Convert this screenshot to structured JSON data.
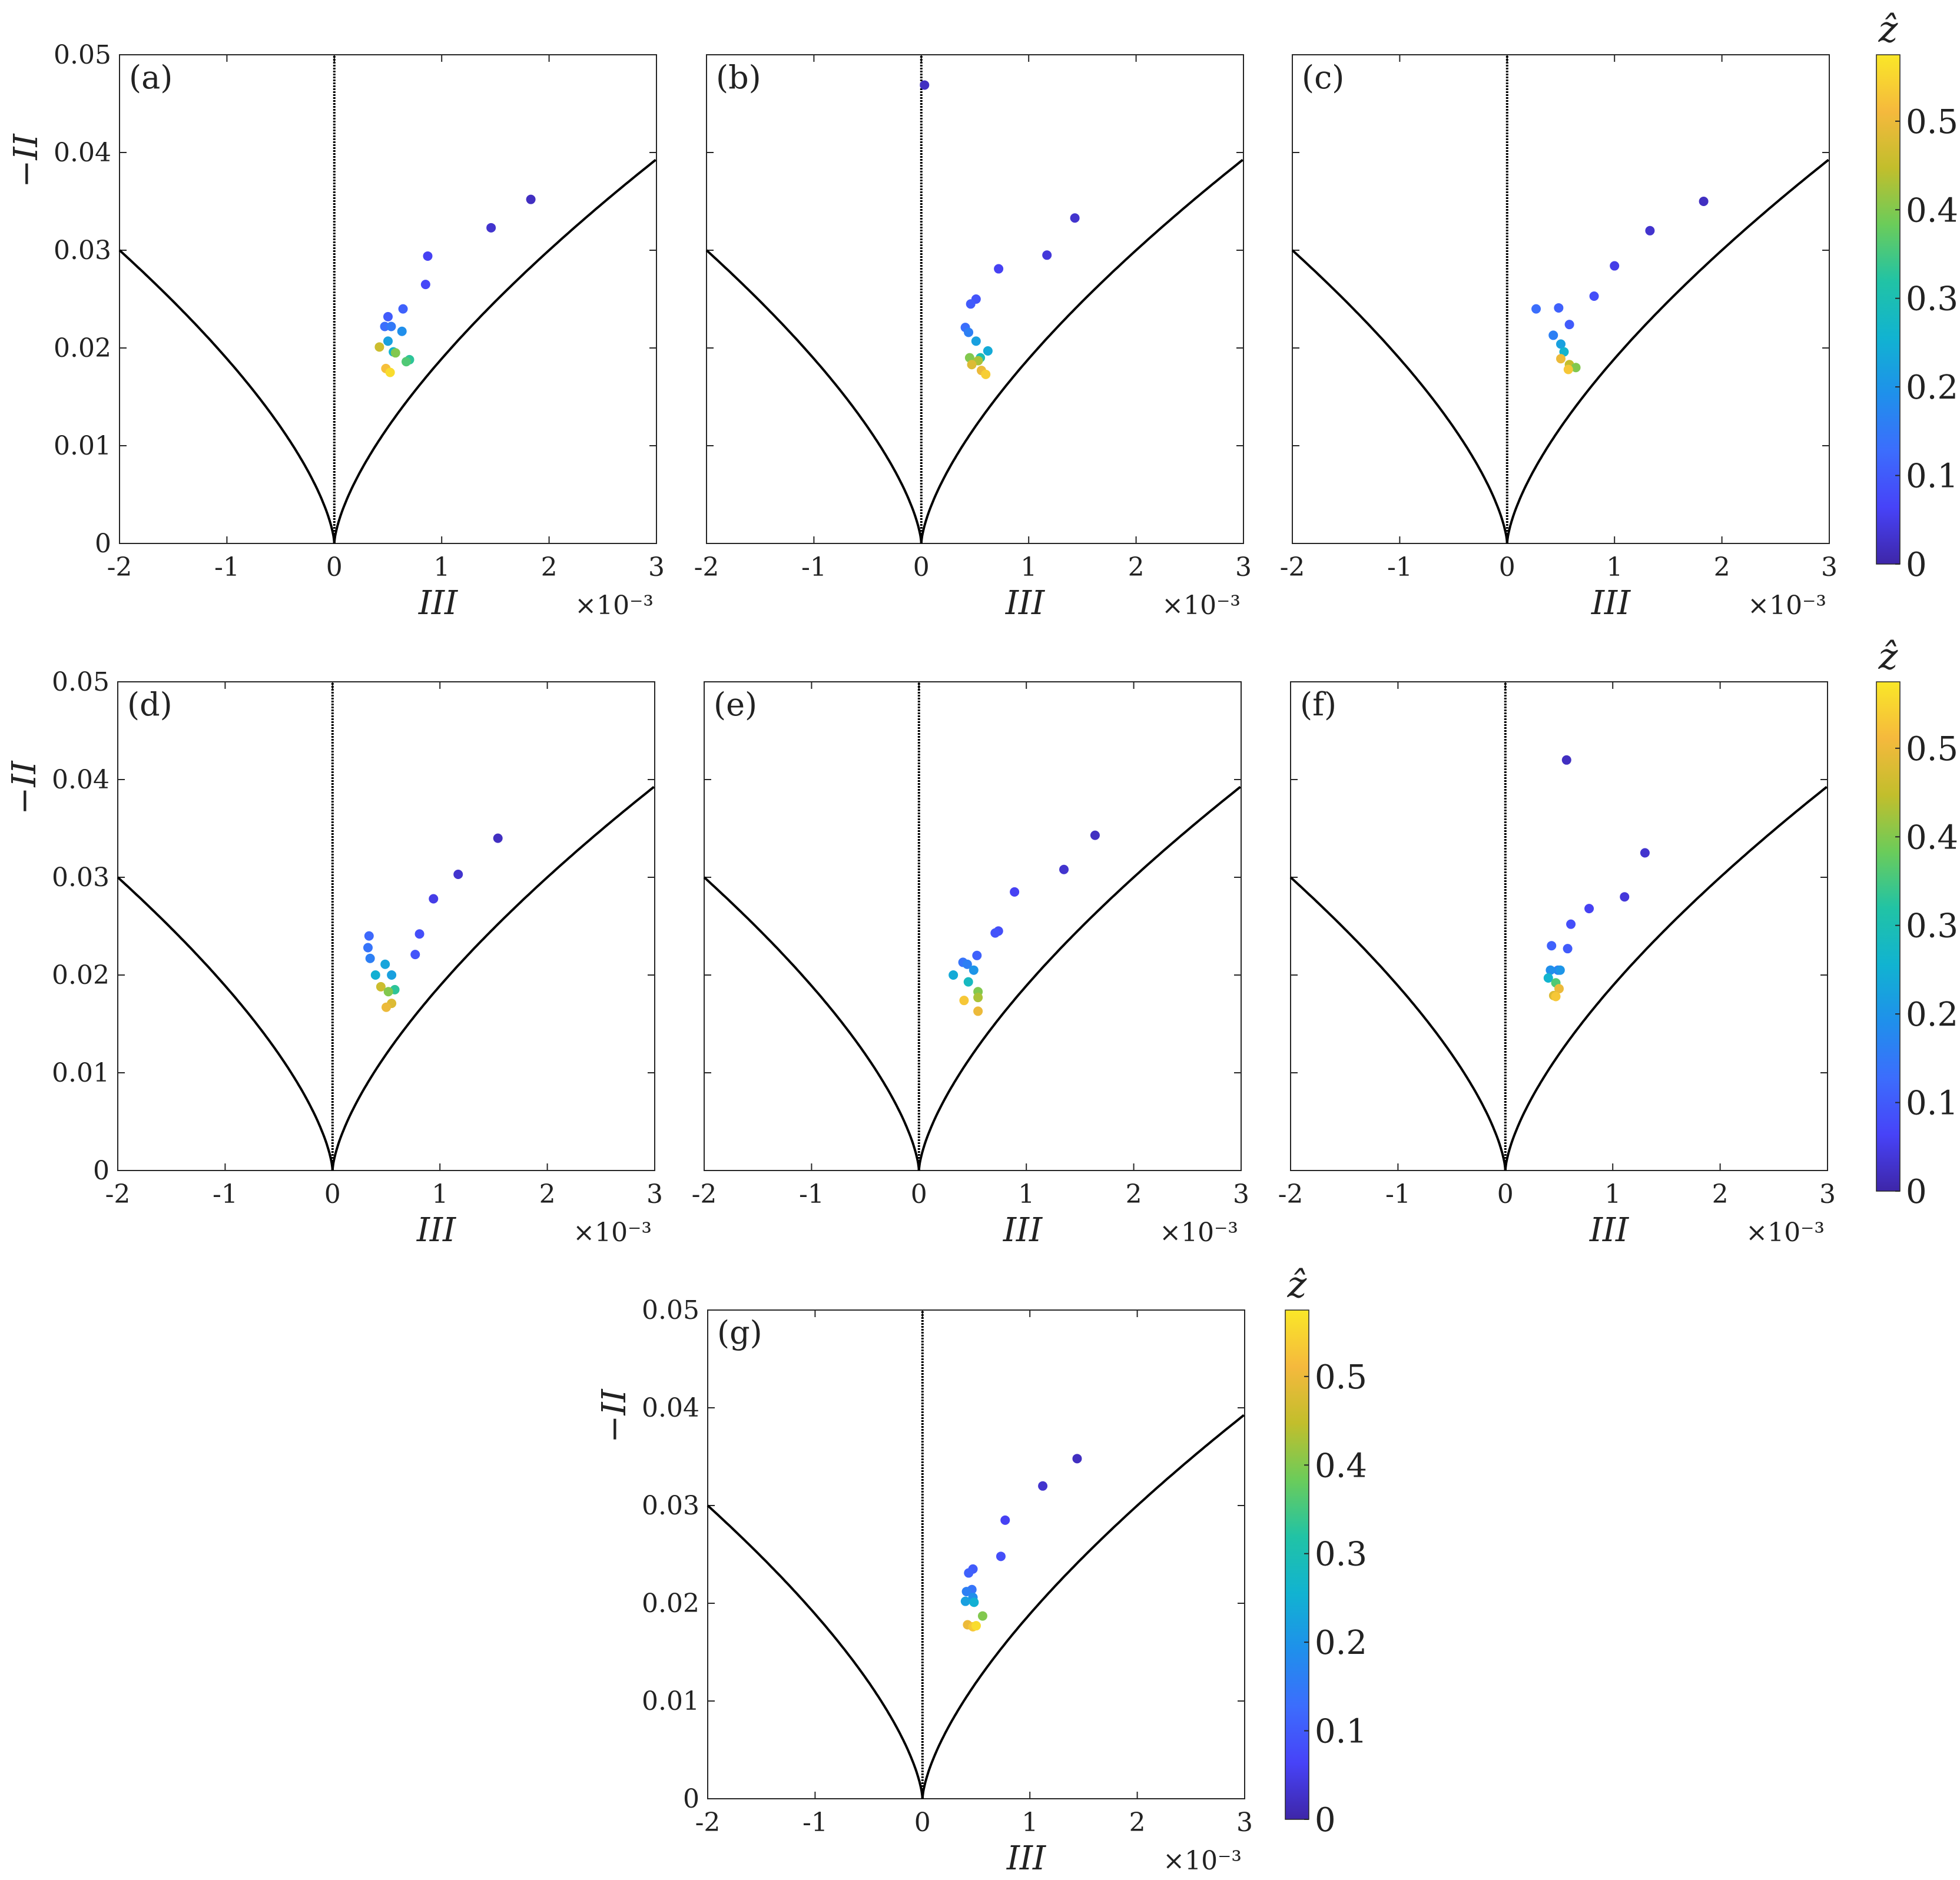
{
  "figure": {
    "colorbar": {
      "label": "ẑ",
      "ticks": [
        "0",
        "0.1",
        "0.2",
        "0.3",
        "0.4",
        "0.5"
      ],
      "range": [
        0,
        0.575
      ]
    },
    "colormap": [
      "#3e26a8",
      "#4743f8",
      "#3c6dfd",
      "#1f90eb",
      "#11b3d1",
      "#21c3a5",
      "#6bcc5a",
      "#c2be2c",
      "#f5b93d",
      "#fae728"
    ]
  },
  "chart_data": [
    {
      "panel": "(a)",
      "type": "scatter",
      "xlabel": "III",
      "ylabel": "−II",
      "x_multiplier": "×10⁻³",
      "xlim": [
        -2,
        3
      ],
      "ylim": [
        0,
        0.05
      ],
      "xticks": [
        "-2",
        "-1",
        "0",
        "1",
        "2",
        "3"
      ],
      "yticks": [
        "0",
        "0.01",
        "0.02",
        "0.03",
        "0.04",
        "0.05"
      ],
      "boundary_curves": [
        "III = 2(−II/3)^(3/2)",
        "III = −2(−II/3)^(3/2)",
        "III = 0"
      ],
      "grid": false,
      "points": {
        "x": [
          1.83,
          1.46,
          0.87,
          0.85,
          0.64,
          0.5,
          0.47,
          0.53,
          0.63,
          0.5,
          0.55,
          0.7,
          0.67,
          0.57,
          0.42,
          0.48,
          0.52
        ],
        "y": [
          0.0352,
          0.0323,
          0.0294,
          0.0265,
          0.024,
          0.0232,
          0.0222,
          0.0222,
          0.0217,
          0.0207,
          0.0196,
          0.0188,
          0.0186,
          0.0195,
          0.0201,
          0.0179,
          0.0175
        ],
        "z": [
          0.02,
          0.03,
          0.06,
          0.07,
          0.11,
          0.1,
          0.13,
          0.15,
          0.19,
          0.22,
          0.26,
          0.33,
          0.36,
          0.4,
          0.46,
          0.52,
          0.56
        ]
      }
    },
    {
      "panel": "(b)",
      "type": "scatter",
      "xlabel": "III",
      "ylabel": "",
      "x_multiplier": "×10⁻³",
      "xlim": [
        -2,
        3
      ],
      "ylim": [
        0,
        0.05
      ],
      "xticks": [
        "-2",
        "-1",
        "0",
        "1",
        "2",
        "3"
      ],
      "yticks": [],
      "boundary_curves": [
        "III = 2(−II/3)^(3/2)",
        "III = −2(−II/3)^(3/2)",
        "III = 0"
      ],
      "grid": false,
      "points": {
        "x": [
          0.03,
          1.43,
          1.17,
          0.72,
          0.51,
          0.46,
          0.41,
          0.44,
          0.51,
          0.62,
          0.55,
          0.45,
          0.53,
          0.47,
          0.56,
          0.6
        ],
        "y": [
          0.0469,
          0.0333,
          0.0295,
          0.0281,
          0.025,
          0.0245,
          0.0221,
          0.0216,
          0.0207,
          0.0197,
          0.019,
          0.019,
          0.0187,
          0.0183,
          0.0177,
          0.0173
        ],
        "z": [
          0.02,
          0.03,
          0.04,
          0.06,
          0.09,
          0.1,
          0.13,
          0.16,
          0.22,
          0.24,
          0.3,
          0.4,
          0.43,
          0.48,
          0.5,
          0.54
        ]
      }
    },
    {
      "panel": "(c)",
      "type": "scatter",
      "xlabel": "III",
      "ylabel": "",
      "x_multiplier": "×10⁻³",
      "xlim": [
        -2,
        3
      ],
      "ylim": [
        0,
        0.05
      ],
      "xticks": [
        "-2",
        "-1",
        "0",
        "1",
        "2",
        "3"
      ],
      "yticks": [],
      "boundary_curves": [
        "III = 2(−II/3)^(3/2)",
        "III = −2(−II/3)^(3/2)",
        "III = 0"
      ],
      "grid": false,
      "points": {
        "x": [
          1.83,
          1.33,
          1.0,
          0.81,
          0.48,
          0.27,
          0.58,
          0.43,
          0.5,
          0.53,
          0.5,
          0.58,
          0.64,
          0.57
        ],
        "y": [
          0.035,
          0.032,
          0.0284,
          0.0253,
          0.0241,
          0.024,
          0.0224,
          0.0213,
          0.0204,
          0.0196,
          0.0189,
          0.0183,
          0.018,
          0.0178
        ],
        "z": [
          0.02,
          0.03,
          0.05,
          0.08,
          0.11,
          0.13,
          0.1,
          0.16,
          0.22,
          0.26,
          0.5,
          0.45,
          0.4,
          0.53
        ]
      }
    },
    {
      "panel": "(d)",
      "type": "scatter",
      "xlabel": "III",
      "ylabel": "−II",
      "x_multiplier": "×10⁻³",
      "xlim": [
        -2,
        3
      ],
      "ylim": [
        0,
        0.05
      ],
      "xticks": [
        "-2",
        "-1",
        "0",
        "1",
        "2",
        "3"
      ],
      "yticks": [
        "0",
        "0.01",
        "0.02",
        "0.03",
        "0.04",
        "0.05"
      ],
      "boundary_curves": [
        "III = 2(−II/3)^(3/2)",
        "III = −2(−II/3)^(3/2)",
        "III = 0"
      ],
      "grid": false,
      "points": {
        "x": [
          1.54,
          1.17,
          0.94,
          0.81,
          0.77,
          0.34,
          0.33,
          0.35,
          0.49,
          0.55,
          0.4,
          0.58,
          0.45,
          0.52,
          0.55,
          0.5
        ],
        "y": [
          0.034,
          0.0303,
          0.0278,
          0.0242,
          0.0221,
          0.024,
          0.0228,
          0.0217,
          0.0211,
          0.02,
          0.02,
          0.0185,
          0.0188,
          0.0183,
          0.0171,
          0.0167
        ],
        "z": [
          0.02,
          0.03,
          0.05,
          0.08,
          0.09,
          0.12,
          0.14,
          0.16,
          0.23,
          0.22,
          0.25,
          0.33,
          0.46,
          0.4,
          0.48,
          0.5
        ]
      }
    },
    {
      "panel": "(e)",
      "type": "scatter",
      "xlabel": "III",
      "ylabel": "",
      "x_multiplier": "×10⁻³",
      "xlim": [
        -2,
        3
      ],
      "ylim": [
        0,
        0.05
      ],
      "xticks": [
        "-2",
        "-1",
        "0",
        "1",
        "2",
        "3"
      ],
      "yticks": [],
      "boundary_curves": [
        "III = 2(−II/3)^(3/2)",
        "III = −2(−II/3)^(3/2)",
        "III = 0"
      ],
      "grid": false,
      "points": {
        "x": [
          1.64,
          1.35,
          0.89,
          0.74,
          0.71,
          0.54,
          0.41,
          0.45,
          0.51,
          0.32,
          0.46,
          0.55,
          0.55,
          0.42,
          0.55
        ],
        "y": [
          0.0343,
          0.0308,
          0.0285,
          0.0245,
          0.0243,
          0.022,
          0.0213,
          0.0211,
          0.0205,
          0.02,
          0.0193,
          0.0183,
          0.0177,
          0.0174,
          0.0163
        ],
        "z": [
          0.02,
          0.03,
          0.06,
          0.08,
          0.09,
          0.11,
          0.14,
          0.16,
          0.2,
          0.24,
          0.28,
          0.4,
          0.43,
          0.53,
          0.5
        ]
      }
    },
    {
      "panel": "(f)",
      "type": "scatter",
      "xlabel": "III",
      "ylabel": "",
      "x_multiplier": "×10⁻³",
      "xlim": [
        -2,
        3
      ],
      "ylim": [
        0,
        0.05
      ],
      "xticks": [
        "-2",
        "-1",
        "0",
        "1",
        "2",
        "3"
      ],
      "yticks": [],
      "boundary_curves": [
        "III = 2(−II/3)^(3/2)",
        "III = −2(−II/3)^(3/2)",
        "III = 0"
      ],
      "grid": false,
      "points": {
        "x": [
          0.57,
          1.3,
          1.11,
          0.78,
          0.61,
          0.43,
          0.58,
          0.49,
          0.42,
          0.51,
          0.4,
          0.47,
          0.5,
          0.45,
          0.47
        ],
        "y": [
          0.042,
          0.0325,
          0.028,
          0.0268,
          0.0252,
          0.023,
          0.0227,
          0.0205,
          0.0205,
          0.0205,
          0.0197,
          0.0192,
          0.0186,
          0.0179,
          0.0178
        ],
        "z": [
          0.02,
          0.03,
          0.04,
          0.06,
          0.08,
          0.11,
          0.1,
          0.16,
          0.19,
          0.2,
          0.26,
          0.36,
          0.5,
          0.48,
          0.53
        ]
      }
    },
    {
      "panel": "(g)",
      "type": "scatter",
      "xlabel": "III",
      "ylabel": "−II",
      "x_multiplier": "×10⁻³",
      "xlim": [
        -2,
        3
      ],
      "ylim": [
        0,
        0.05
      ],
      "xticks": [
        "-2",
        "-1",
        "0",
        "1",
        "2",
        "3"
      ],
      "yticks": [
        "0",
        "0.01",
        "0.02",
        "0.03",
        "0.04",
        "0.05"
      ],
      "boundary_curves": [
        "III = 2(−II/3)^(3/2)",
        "III = −2(−II/3)^(3/2)",
        "III = 0"
      ],
      "grid": false,
      "points": {
        "x": [
          1.44,
          1.12,
          0.77,
          0.73,
          0.47,
          0.43,
          0.46,
          0.41,
          0.47,
          0.4,
          0.48,
          0.56,
          0.42,
          0.47,
          0.5
        ],
        "y": [
          0.0348,
          0.032,
          0.0285,
          0.0248,
          0.0235,
          0.0231,
          0.0214,
          0.0212,
          0.0206,
          0.0202,
          0.0201,
          0.0187,
          0.0178,
          0.0176,
          0.0177
        ],
        "z": [
          0.02,
          0.03,
          0.06,
          0.08,
          0.1,
          0.11,
          0.14,
          0.16,
          0.19,
          0.22,
          0.25,
          0.4,
          0.5,
          0.53,
          0.56
        ]
      }
    }
  ]
}
